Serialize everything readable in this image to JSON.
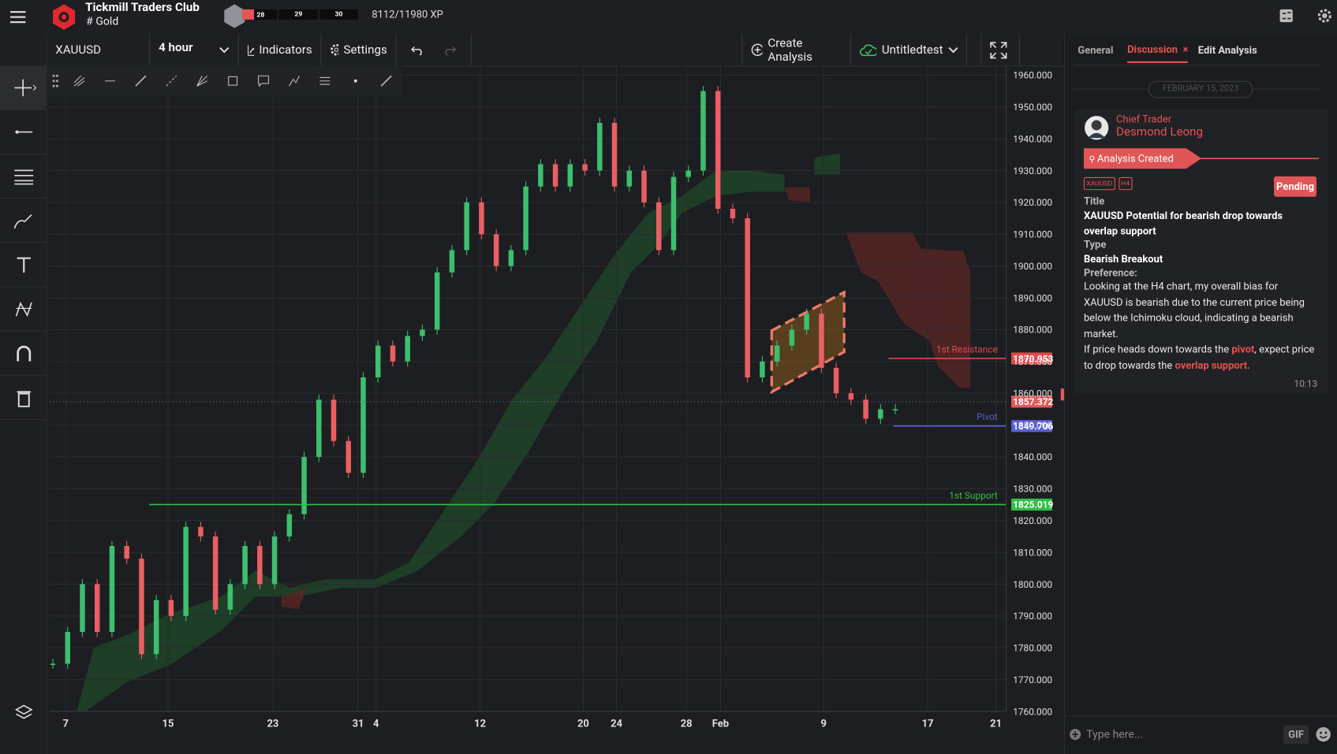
{
  "header": {
    "app_title": "Tickmill Traders Club",
    "channel": "# Gold",
    "levels": [
      "28",
      "29",
      "30"
    ],
    "xp": "8112/11980 XP"
  },
  "toolbar": {
    "symbol": "XAUUSD",
    "interval": "4 hour",
    "indicators": "Indicators",
    "settings": "Settings",
    "create": "Create Analysis",
    "workspace": "Untitledtest"
  },
  "chart": {
    "ylim": [
      1760,
      1963
    ],
    "yticks": [
      {
        "value": 1760,
        "label": "1760.000"
      },
      {
        "value": 1770,
        "label": "1770.000"
      },
      {
        "value": 1780,
        "label": "1780.000"
      },
      {
        "value": 1790,
        "label": "1790.000"
      },
      {
        "value": 1800,
        "label": "1800.000"
      },
      {
        "value": 1810,
        "label": "1810.000"
      },
      {
        "value": 1820,
        "label": "1820.000"
      },
      {
        "value": 1830,
        "label": "1830.000"
      },
      {
        "value": 1840,
        "label": "1840.000"
      },
      {
        "value": 1850,
        "label": "1850.000"
      },
      {
        "value": 1860,
        "label": "1860.000"
      },
      {
        "value": 1870,
        "label": "1870.000"
      },
      {
        "value": 1880,
        "label": "1880.000"
      },
      {
        "value": 1890,
        "label": "1890.000"
      },
      {
        "value": 1900,
        "label": "1900.000"
      },
      {
        "value": 1910,
        "label": "1910.000"
      },
      {
        "value": 1920,
        "label": "1920.000"
      },
      {
        "value": 1930,
        "label": "1930.000"
      },
      {
        "value": 1940,
        "label": "1940.000"
      },
      {
        "value": 1950,
        "label": "1950.000"
      },
      {
        "value": 1960,
        "label": "1960.000"
      }
    ],
    "xlabels": [
      "7",
      "15",
      "23",
      "31",
      "4",
      "12",
      "20",
      "24",
      "28",
      "Feb",
      "9",
      "17",
      "21"
    ],
    "closes": [
      1775,
      1785,
      1800,
      1785,
      1812,
      1808,
      1778,
      1795,
      1790,
      1818,
      1815,
      1792,
      1800,
      1812,
      1800,
      1815,
      1822,
      1840,
      1858,
      1845,
      1835,
      1865,
      1875,
      1870,
      1878,
      1880,
      1898,
      1905,
      1920,
      1910,
      1900,
      1905,
      1925,
      1932,
      1925,
      1932,
      1930,
      1945,
      1925,
      1930,
      1920,
      1905,
      1928,
      1930,
      1955,
      1918,
      1915,
      1865,
      1870,
      1875,
      1880,
      1885,
      1868,
      1860,
      1858,
      1852,
      1855,
      1855
    ],
    "up_color": "#3dbf6e",
    "down_color": "#ea5f63",
    "levels": [
      {
        "name": "1st Resistance",
        "value": 1870.953,
        "label": "1870.953",
        "color": "#e04a4a"
      },
      {
        "name": "Pivot",
        "value": 1849.706,
        "label": "1849.706",
        "color": "#5a5fd6"
      },
      {
        "name": "1st Support",
        "value": 1825.019,
        "label": "1825.019",
        "color": "#2fbf4a"
      }
    ],
    "current": {
      "value": 1857.372,
      "label": "1857.372",
      "color": "#e25a5d"
    }
  },
  "panel": {
    "tabs": [
      "General",
      "Discussion",
      "Edit Analysis"
    ],
    "date": "FEBRUARY 15, 2023",
    "author_role": "Chief Trader",
    "author_name": "Desmond Leong",
    "status_banner": "Analysis Created",
    "tags": [
      "XAUUSD",
      "H4"
    ],
    "status": "Pending",
    "title_label": "Title",
    "title": "XAUUSD Potential for bearish drop towards overlap support",
    "type_label": "Type",
    "type": "Bearish Breakout",
    "preference_label": "Preference:",
    "body_1": "Looking at the H4 chart, my overall bias for XAUUSD is bearish due to the current price being below the Ichimoku cloud, indicating a bearish market.",
    "body_2": [
      {
        "text": "If price heads down towards the ",
        "highlight": false
      },
      {
        "text": "pivot",
        "highlight": true
      },
      {
        "text": ", expect price to drop towards the ",
        "highlight": false
      },
      {
        "text": "overlap support.",
        "highlight": true
      }
    ],
    "time": "10:13",
    "input_placeholder": "Type here...",
    "gif": "GIF"
  }
}
